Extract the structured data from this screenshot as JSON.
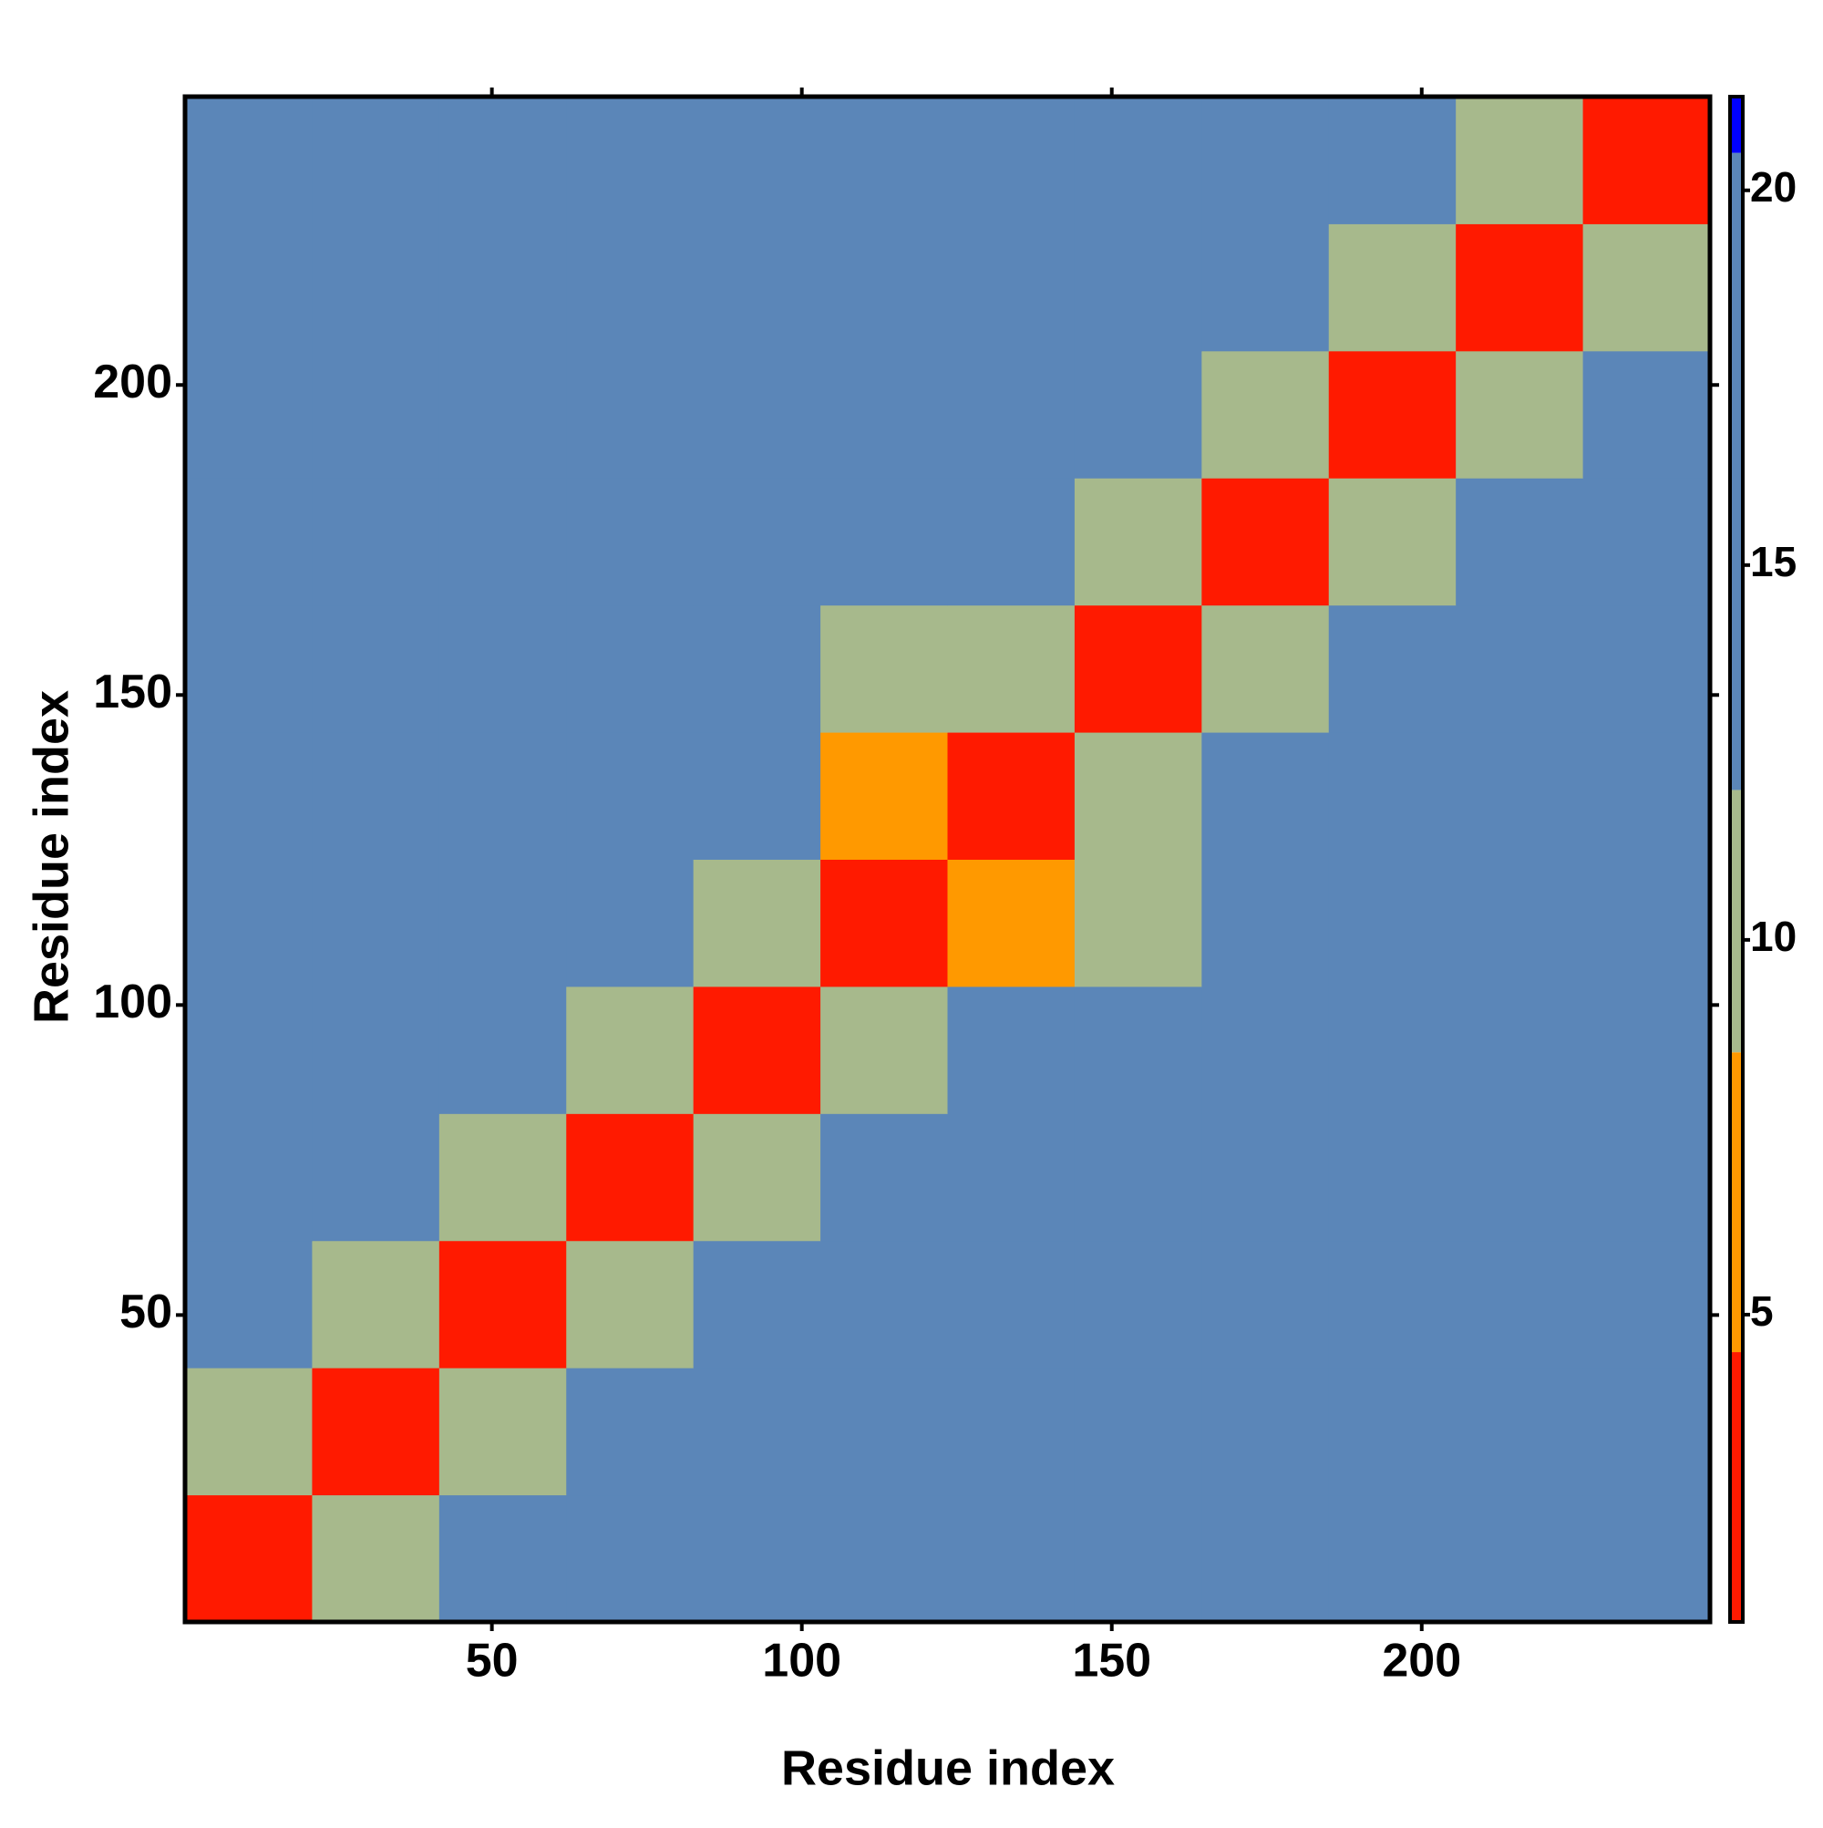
{
  "chart_data": {
    "type": "heatmap",
    "x_label": "Residue index",
    "y_label": "Residue index",
    "xlim": [
      0.5,
      246.5
    ],
    "ylim": [
      0.5,
      246.5
    ],
    "xticks": [
      50,
      100,
      150,
      200
    ],
    "yticks": [
      50,
      100,
      150,
      200
    ],
    "bins": [
      0.5,
      21,
      41.5,
      62,
      82.5,
      103,
      123.5,
      144,
      164.5,
      185,
      205.5,
      226,
      246.5
    ],
    "z": [
      [
        3,
        10,
        13,
        15,
        17,
        18,
        19,
        20,
        20,
        16,
        13,
        13
      ],
      [
        10,
        3,
        10,
        13,
        16,
        19,
        20,
        20,
        20,
        17,
        14,
        14
      ],
      [
        13,
        10,
        3,
        10,
        15,
        17,
        18,
        19,
        19,
        17,
        16,
        16
      ],
      [
        15,
        13,
        10,
        3,
        10,
        14,
        17,
        18,
        16,
        14,
        16,
        17
      ],
      [
        17,
        16,
        15,
        10,
        3,
        10,
        13,
        17,
        17,
        15,
        17,
        18
      ],
      [
        18,
        19,
        17,
        14,
        10,
        3,
        8,
        12,
        17,
        17,
        19,
        19
      ],
      [
        19,
        20,
        18,
        17,
        13,
        8,
        3,
        10,
        14,
        17,
        18,
        19
      ],
      [
        20,
        20,
        19,
        18,
        17,
        12,
        10,
        3,
        10,
        15,
        18,
        19
      ],
      [
        20,
        20,
        19,
        16,
        17,
        17,
        14,
        10,
        3,
        9,
        14,
        16
      ],
      [
        16,
        17,
        17,
        14,
        15,
        17,
        17,
        15,
        9,
        3,
        10,
        14
      ],
      [
        13,
        14,
        16,
        16,
        17,
        19,
        18,
        18,
        14,
        10,
        3,
        10
      ],
      [
        13,
        14,
        16,
        17,
        18,
        19,
        19,
        19,
        16,
        14,
        10,
        3
      ]
    ],
    "clim": [
      0.9,
      21.25
    ],
    "colorbar_ticks": [
      5,
      10,
      15,
      20
    ],
    "colorscale": [
      {
        "max": 4.5,
        "color": "#ff1a00"
      },
      {
        "max": 8.5,
        "color": "#ff9900"
      },
      {
        "max": 12,
        "color": "#a7b98c"
      },
      {
        "max": 20.5,
        "color": "#5b86b8"
      },
      {
        "max": 21.25,
        "color": "#0000ff"
      }
    ]
  }
}
